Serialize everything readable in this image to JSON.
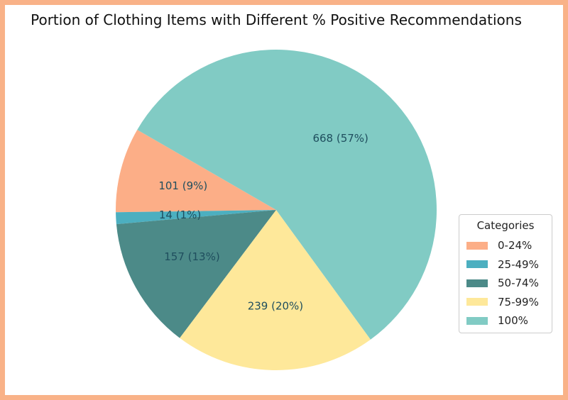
{
  "chart_data": {
    "type": "pie",
    "title": "Portion of Clothing Items with Different % Positive Recommendations",
    "categories": [
      "0-24%",
      "25-49%",
      "50-74%",
      "75-99%",
      "100%"
    ],
    "values": [
      101,
      14,
      157,
      239,
      668
    ],
    "slice_labels": [
      "101 (9%)",
      "14 (1%)",
      "157 (13%)",
      "239 (20%)",
      "668 (57%)"
    ],
    "colors": [
      "#fcae87",
      "#4cafc0",
      "#4c8a88",
      "#fee89a",
      "#81cbc4"
    ],
    "legend": {
      "title": "Categories",
      "placement": "right"
    }
  },
  "frame_color": "#f9b288",
  "label_color": "#1f4e5e"
}
